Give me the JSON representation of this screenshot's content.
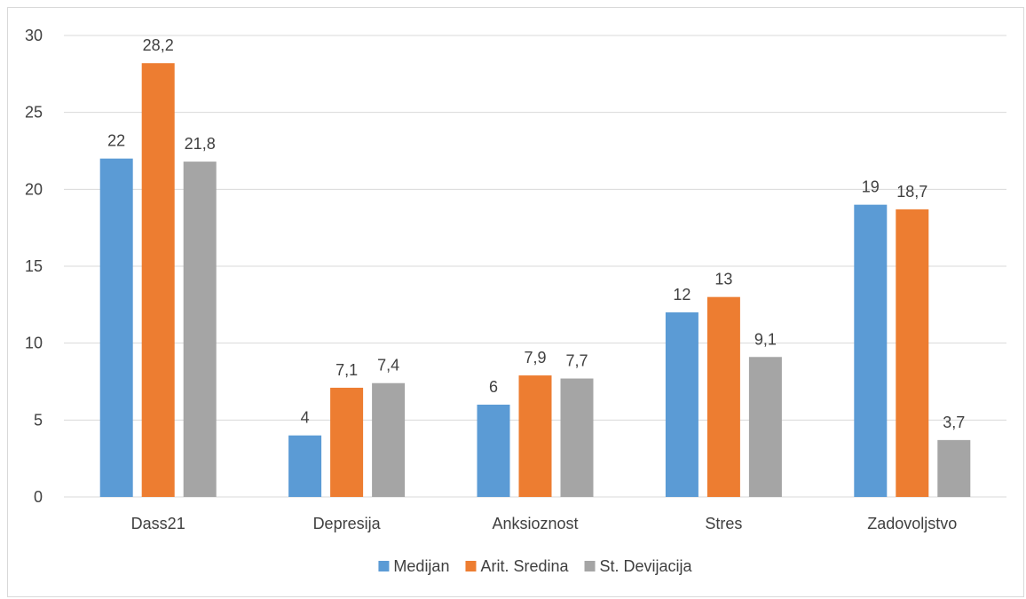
{
  "chart_data": {
    "type": "bar",
    "categories": [
      "Dass21",
      "Depresija",
      "Anksioznost",
      "Stres",
      "Zadovoljstvo"
    ],
    "series": [
      {
        "name": "Medijan",
        "color": "#5b9bd5",
        "values": [
          22,
          4,
          6,
          12,
          19
        ],
        "labels": [
          "22",
          "4",
          "6",
          "12",
          "19"
        ]
      },
      {
        "name": "Arit. Sredina",
        "color": "#ed7d31",
        "values": [
          28.2,
          7.1,
          7.9,
          13,
          18.7
        ],
        "labels": [
          "28,2",
          "7,1",
          "7,9",
          "13",
          "18,7"
        ]
      },
      {
        "name": "St. Devijacija",
        "color": "#a5a5a5",
        "values": [
          21.8,
          7.4,
          7.7,
          9.1,
          3.7
        ],
        "labels": [
          "21,8",
          "7,4",
          "7,7",
          "9,1",
          "3,7"
        ]
      }
    ],
    "ylim": [
      0,
      30
    ],
    "yticks": [
      0,
      5,
      10,
      15,
      20,
      25,
      30
    ],
    "grid": true,
    "gridline_color": "#d9d9d9",
    "legend_position": "bottom"
  }
}
